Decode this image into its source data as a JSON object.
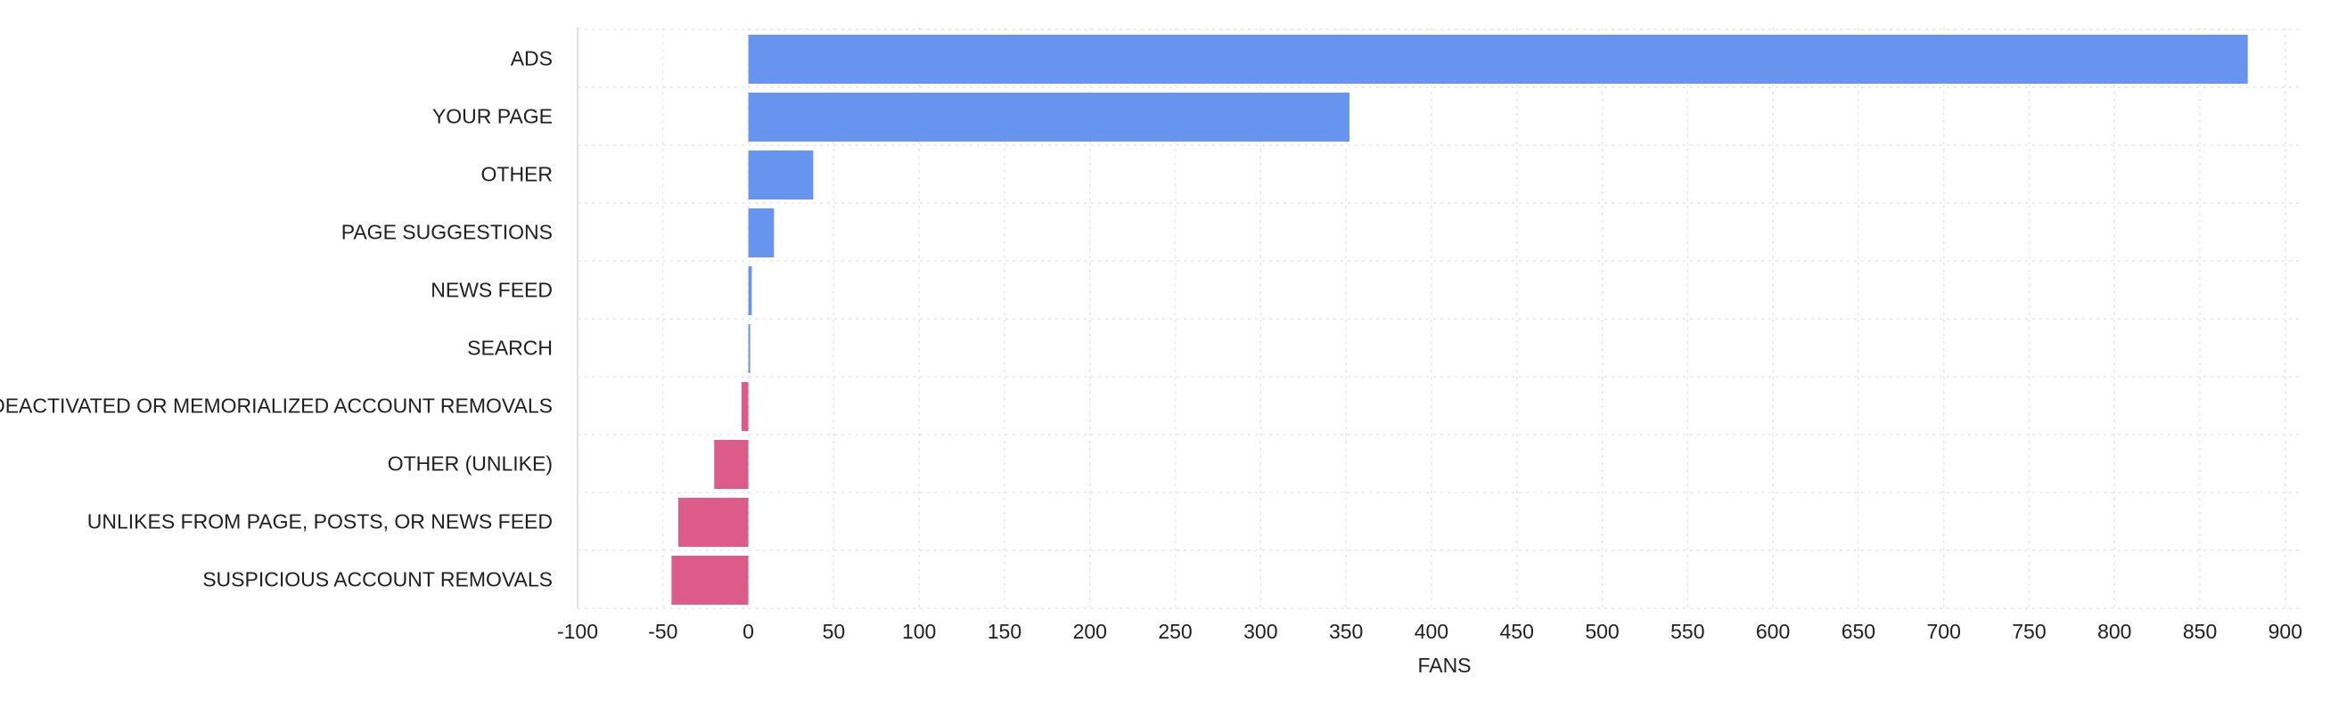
{
  "chart_data": {
    "type": "bar",
    "orientation": "horizontal",
    "title": "",
    "xlabel": "FANS",
    "ylabel": "",
    "xlim": [
      -100,
      910
    ],
    "x_ticks": [
      -100,
      -50,
      0,
      50,
      100,
      150,
      200,
      250,
      300,
      350,
      400,
      450,
      500,
      550,
      600,
      650,
      700,
      750,
      800,
      850,
      900
    ],
    "grid": true,
    "legend": "none",
    "categories": [
      "ADS",
      "YOUR PAGE",
      "OTHER",
      "PAGE SUGGESTIONS",
      "NEWS FEED",
      "SEARCH",
      "DEACTIVATED OR MEMORIALIZED ACCOUNT REMOVALS",
      "OTHER (UNLIKE)",
      "UNLIKES FROM PAGE, POSTS, OR NEWS FEED",
      "SUSPICIOUS ACCOUNT REMOVALS"
    ],
    "values": [
      878,
      352,
      38,
      15,
      2,
      1,
      -4,
      -20,
      -41,
      -45
    ],
    "colors": {
      "positive": "#6794ee",
      "negative": "#dc5b89"
    }
  }
}
